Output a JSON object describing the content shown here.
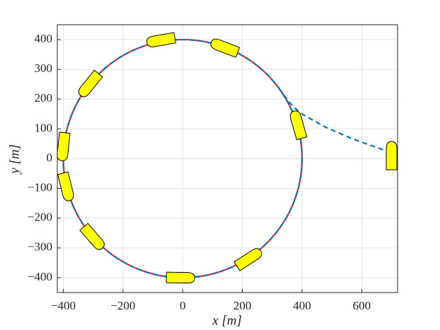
{
  "chart_data": {
    "type": "line",
    "xlabel": "x [m]",
    "ylabel": "y [m]",
    "xlim": [
      -420,
      720
    ],
    "ylim": [
      -450,
      450
    ],
    "xticks": [
      {
        "value": -400,
        "label": "−400"
      },
      {
        "value": -200,
        "label": "−200"
      },
      0,
      200,
      400,
      600
    ],
    "yticks": [
      {
        "value": -400,
        "label": "−400"
      },
      {
        "value": -300,
        "label": "−300"
      },
      {
        "value": -200,
        "label": "−200"
      },
      {
        "value": -100,
        "label": "−100"
      },
      0,
      100,
      200,
      300,
      400
    ],
    "grid": true,
    "circle": {
      "cx": 0,
      "cy": 0,
      "r": 400,
      "color": "#e8262a",
      "dash_color": "#0072bd"
    },
    "approach": {
      "color": "#0072bd",
      "x": [
        322,
        357,
        393,
        476,
        570,
        677
      ],
      "y": [
        237,
        189,
        154,
        107,
        66,
        28
      ]
    },
    "ship_color": "#ffff00",
    "ships": [
      {
        "x": 700,
        "y": 10,
        "heading": 90
      },
      {
        "x": 386,
        "y": 114,
        "heading": 106
      },
      {
        "x": 140,
        "y": 374,
        "heading": 159
      },
      {
        "x": -73,
        "y": 398,
        "heading": 190
      },
      {
        "x": -312,
        "y": 249,
        "heading": 231
      },
      {
        "x": -400,
        "y": 40,
        "heading": 264
      },
      {
        "x": -390,
        "y": -95,
        "heading": 284
      },
      {
        "x": -300,
        "y": -265,
        "heading": 311
      },
      {
        "x": -7,
        "y": -400,
        "heading": 359
      },
      {
        "x": 222,
        "y": -336,
        "heading": 33
      }
    ]
  }
}
